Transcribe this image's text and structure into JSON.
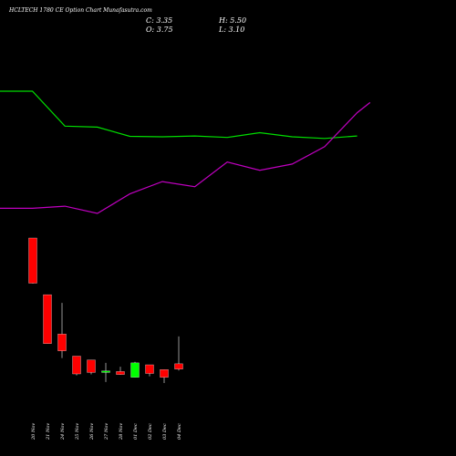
{
  "chart_data": {
    "type": "candlestick",
    "title": "HCLTECH 1780 CE Option Chart Munafasutra.com",
    "ohlc_readout": {
      "open": "O: 3.75",
      "high": "H: 5.50",
      "close": "C: 3.35",
      "low": "L: 3.10"
    },
    "categories": [
      "20 Nov",
      "21 Nov",
      "24 Nov",
      "25 Nov",
      "26 Nov",
      "27 Nov",
      "28 Nov",
      "01 Dec",
      "02 Dec",
      "03 Dec",
      "04 Dec"
    ],
    "candles": [
      {
        "open": 28.0,
        "high": 28.0,
        "low": 18.5,
        "close": 18.6
      },
      {
        "open": 16.2,
        "high": 16.2,
        "low": 6.0,
        "close": 6.0
      },
      {
        "open": 8.0,
        "high": 14.5,
        "low": 3.0,
        "close": 4.5
      },
      {
        "open": 3.4,
        "high": 3.4,
        "low": -0.6,
        "close": -0.3
      },
      {
        "open": 2.6,
        "high": 2.6,
        "low": -0.4,
        "close": 0.0
      },
      {
        "open": 0.0,
        "high": 2.0,
        "low": -2.0,
        "close": 0.3
      },
      {
        "open": 0.2,
        "high": 1.2,
        "low": -0.5,
        "close": -0.4
      },
      {
        "open": -1.0,
        "high": 2.2,
        "low": -1.0,
        "close": 2.0
      },
      {
        "open": 1.6,
        "high": 1.6,
        "low": -0.8,
        "close": -0.2
      },
      {
        "open": 0.6,
        "high": 0.6,
        "low": -2.2,
        "close": -1.0
      },
      {
        "open": 1.8,
        "high": 7.5,
        "low": 0.4,
        "close": 0.7
      }
    ],
    "indicator_lines": [
      {
        "color": "#00dd00",
        "x": [
          0,
          1,
          2,
          3,
          4,
          5,
          6,
          7,
          8,
          9,
          10,
          11
        ],
        "values": [
          6.4,
          6.4,
          4.7,
          4.65,
          4.2,
          4.18,
          4.22,
          4.15,
          4.38,
          4.18,
          4.1,
          4.22
        ]
      },
      {
        "color": "#c000c0",
        "x": [
          0,
          1,
          2,
          3,
          4,
          5,
          6,
          7,
          8,
          9,
          10,
          11,
          11.4
        ],
        "values": [
          0.7,
          0.7,
          0.8,
          0.45,
          1.4,
          2.0,
          1.75,
          2.95,
          2.55,
          2.85,
          3.7,
          5.35,
          5.85
        ]
      }
    ],
    "colors": {
      "up": "#00ff00",
      "down": "#ff0000",
      "background": "#000000",
      "text": "#ffffff"
    },
    "grid": false,
    "legend": "none"
  }
}
